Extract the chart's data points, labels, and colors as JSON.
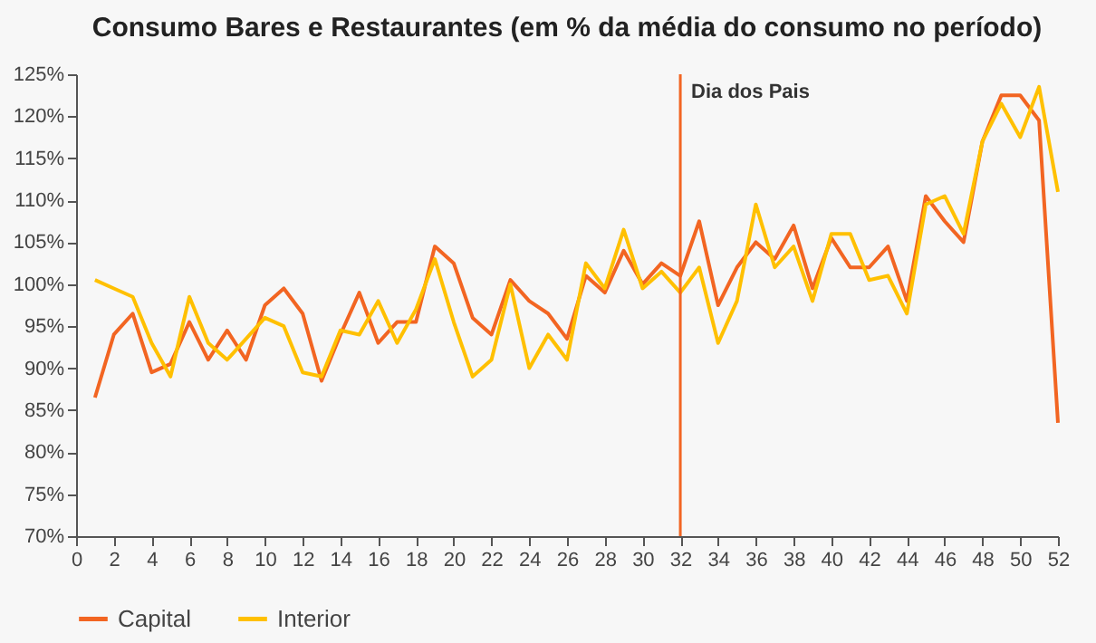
{
  "chart_data": {
    "type": "line",
    "title": "Consumo Bares e Restaurantes (em % da média do consumo no período)",
    "x": [
      1,
      2,
      3,
      4,
      5,
      6,
      7,
      8,
      9,
      10,
      11,
      12,
      13,
      14,
      15,
      16,
      17,
      18,
      19,
      20,
      21,
      22,
      23,
      24,
      25,
      26,
      27,
      28,
      29,
      30,
      31,
      32,
      33,
      34,
      35,
      36,
      37,
      38,
      39,
      40,
      41,
      42,
      43,
      44,
      45,
      46,
      47,
      48,
      49,
      50,
      51,
      52
    ],
    "series": [
      {
        "name": "Capital",
        "color": "#f26522",
        "values": [
          86.5,
          94,
          96.5,
          89.5,
          90.5,
          95.5,
          91,
          94.5,
          91,
          97.5,
          99.5,
          96.5,
          88.5,
          94,
          99,
          93,
          95.5,
          95.5,
          104.5,
          102.5,
          96,
          94,
          100.5,
          98,
          96.5,
          93.5,
          101,
          99,
          104,
          100,
          102.5,
          101,
          107.5,
          97.5,
          102,
          105,
          103,
          107,
          99.5,
          105.5,
          102,
          102,
          104.5,
          98,
          110.5,
          107.5,
          105,
          117,
          122.5,
          122.5,
          119.5,
          83.5
        ]
      },
      {
        "name": "Interior",
        "color": "#ffc000",
        "values": [
          100.5,
          99.5,
          98.5,
          93,
          89,
          98.5,
          93,
          91,
          93.5,
          96,
          95,
          89.5,
          89,
          94.5,
          94,
          98,
          93,
          97,
          103,
          95.5,
          89,
          91,
          100,
          90,
          94,
          91,
          102.5,
          99.5,
          106.5,
          99.5,
          101.5,
          99,
          102,
          93,
          98,
          109.5,
          102,
          104.5,
          98,
          106,
          106,
          100.5,
          101,
          96.5,
          109.5,
          110.5,
          106,
          117,
          121.5,
          117.5,
          123.5,
          111
        ]
      }
    ],
    "xlim": [
      0,
      52
    ],
    "xticks": [
      0,
      2,
      4,
      6,
      8,
      10,
      12,
      14,
      16,
      18,
      20,
      22,
      24,
      26,
      28,
      30,
      32,
      34,
      36,
      38,
      40,
      42,
      44,
      46,
      48,
      50,
      52
    ],
    "ylim": [
      70,
      125
    ],
    "yticks": [
      {
        "value": 70,
        "label": "70%"
      },
      {
        "value": 75,
        "label": "75%"
      },
      {
        "value": 80,
        "label": "80%"
      },
      {
        "value": 85,
        "label": "85%"
      },
      {
        "value": 90,
        "label": "90%"
      },
      {
        "value": 95,
        "label": "95%"
      },
      {
        "value": 100,
        "label": "100%"
      },
      {
        "value": 105,
        "label": "105%"
      },
      {
        "value": 110,
        "label": "110%"
      },
      {
        "value": 115,
        "label": "115%"
      },
      {
        "value": 120,
        "label": "120%"
      },
      {
        "value": 125,
        "label": "125%"
      }
    ],
    "ref_lines": [
      {
        "axis": "x",
        "value": 32,
        "label": "Dia dos Pais",
        "color": "#f26522"
      }
    ],
    "grid": false,
    "legend": "bottom",
    "line_style": "solid",
    "marker": "none"
  }
}
